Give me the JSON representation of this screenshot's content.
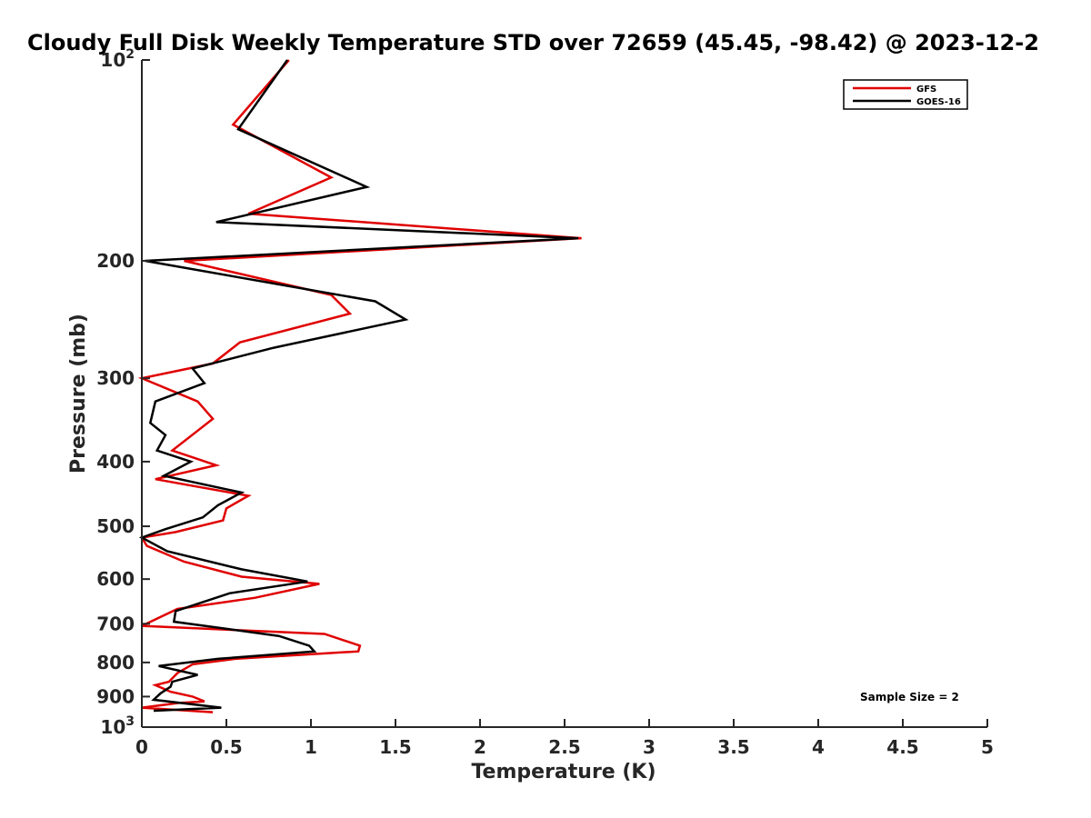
{
  "chart_data": {
    "type": "line",
    "orientation": "vertical-profile",
    "title": "Cloudy Full Disk Weekly Temperature STD over 72659 (45.45, -98.42) @ 2023-12-2",
    "xlabel": "Temperature (K)",
    "ylabel": "Pressure (mb)",
    "xlim": [
      0,
      5
    ],
    "ylim": [
      100,
      1000
    ],
    "y_scale": "log",
    "y_reversed": true,
    "grid": false,
    "legend_position": "top-right",
    "annotation": "Sample Size = 2",
    "x_ticks": [
      {
        "value": 0,
        "label": "0"
      },
      {
        "value": 0.5,
        "label": "0.5"
      },
      {
        "value": 1,
        "label": "1"
      },
      {
        "value": 1.5,
        "label": "1.5"
      },
      {
        "value": 2,
        "label": "2"
      },
      {
        "value": 2.5,
        "label": "2.5"
      },
      {
        "value": 3,
        "label": "3"
      },
      {
        "value": 3.5,
        "label": "3.5"
      },
      {
        "value": 4,
        "label": "4"
      },
      {
        "value": 4.5,
        "label": "4.5"
      },
      {
        "value": 5,
        "label": "5"
      }
    ],
    "y_ticks": [
      {
        "value": 100,
        "base": "10",
        "exp": "2"
      },
      {
        "value": 200,
        "label": "200"
      },
      {
        "value": 300,
        "label": "300"
      },
      {
        "value": 400,
        "label": "400"
      },
      {
        "value": 500,
        "label": "500"
      },
      {
        "value": 600,
        "label": "600"
      },
      {
        "value": 700,
        "label": "700"
      },
      {
        "value": 800,
        "label": "800"
      },
      {
        "value": 900,
        "label": "900"
      },
      {
        "value": 1000,
        "base": "10",
        "exp": "3"
      }
    ],
    "series": [
      {
        "name": "GFS",
        "color": "#e00000",
        "points": [
          [
            0.87,
            100
          ],
          [
            0.54,
            125
          ],
          [
            1.12,
            150
          ],
          [
            0.63,
            170
          ],
          [
            2.6,
            185
          ],
          [
            0.25,
            200
          ],
          [
            1.12,
            225
          ],
          [
            1.23,
            240
          ],
          [
            0.58,
            265
          ],
          [
            0.42,
            285
          ],
          [
            0.0,
            300
          ],
          [
            0.33,
            325
          ],
          [
            0.42,
            345
          ],
          [
            0.18,
            385
          ],
          [
            0.44,
            405
          ],
          [
            0.08,
            425
          ],
          [
            0.63,
            450
          ],
          [
            0.5,
            470
          ],
          [
            0.48,
            490
          ],
          [
            0.2,
            510
          ],
          [
            0.0,
            520
          ],
          [
            0.03,
            535
          ],
          [
            0.25,
            565
          ],
          [
            0.59,
            595
          ],
          [
            1.05,
            610
          ],
          [
            0.67,
            640
          ],
          [
            0.21,
            665
          ],
          [
            0.0,
            705
          ],
          [
            1.08,
            725
          ],
          [
            1.29,
            755
          ],
          [
            1.28,
            770
          ],
          [
            0.55,
            790
          ],
          [
            0.3,
            805
          ],
          [
            0.21,
            830
          ],
          [
            0.16,
            855
          ],
          [
            0.08,
            865
          ],
          [
            0.17,
            885
          ],
          [
            0.3,
            900
          ],
          [
            0.37,
            915
          ],
          [
            0.22,
            920
          ],
          [
            0.0,
            935
          ],
          [
            0.42,
            950
          ]
        ]
      },
      {
        "name": "GOES-16",
        "color": "#000000",
        "points": [
          [
            0.86,
            100
          ],
          [
            0.57,
            127
          ],
          [
            1.33,
            155
          ],
          [
            0.44,
            175
          ],
          [
            2.58,
            185
          ],
          [
            0.02,
            200
          ],
          [
            1.38,
            230
          ],
          [
            1.56,
            245
          ],
          [
            0.78,
            270
          ],
          [
            0.3,
            290
          ],
          [
            0.37,
            305
          ],
          [
            0.08,
            325
          ],
          [
            0.05,
            350
          ],
          [
            0.14,
            365
          ],
          [
            0.09,
            385
          ],
          [
            0.29,
            400
          ],
          [
            0.13,
            420
          ],
          [
            0.59,
            445
          ],
          [
            0.45,
            465
          ],
          [
            0.36,
            485
          ],
          [
            0.14,
            505
          ],
          [
            0.0,
            520
          ],
          [
            0.15,
            545
          ],
          [
            0.59,
            580
          ],
          [
            0.98,
            605
          ],
          [
            0.52,
            630
          ],
          [
            0.2,
            670
          ],
          [
            0.19,
            695
          ],
          [
            0.81,
            730
          ],
          [
            0.99,
            755
          ],
          [
            1.02,
            770
          ],
          [
            0.45,
            790
          ],
          [
            0.1,
            810
          ],
          [
            0.33,
            835
          ],
          [
            0.18,
            855
          ],
          [
            0.17,
            870
          ],
          [
            0.11,
            890
          ],
          [
            0.07,
            910
          ],
          [
            0.47,
            935
          ],
          [
            0.07,
            945
          ]
        ]
      }
    ]
  }
}
